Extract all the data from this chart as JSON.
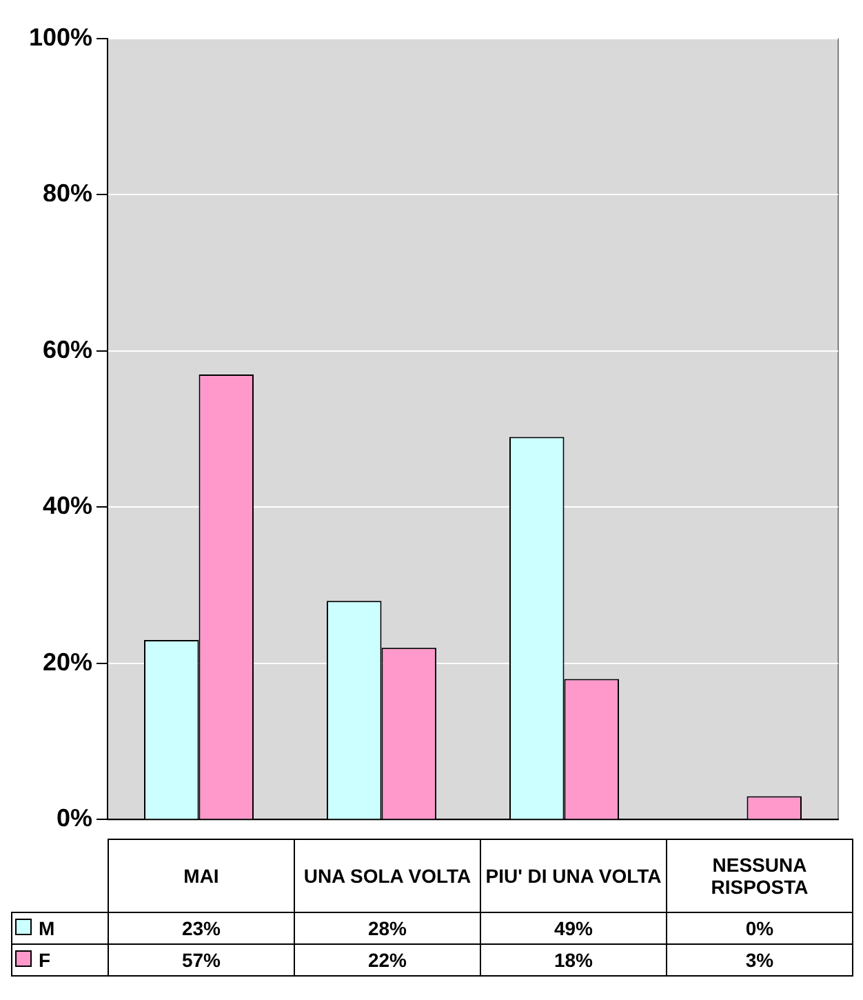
{
  "chart_data": {
    "type": "bar",
    "categories": [
      "MAI",
      "UNA SOLA VOLTA",
      "PIU' DI UNA VOLTA",
      "NESSUNA RISPOSTA"
    ],
    "series": [
      {
        "name": "M",
        "color": "#ccffff",
        "values": [
          23,
          28,
          49,
          0
        ],
        "value_labels": [
          "23%",
          "28%",
          "49%",
          "0%"
        ]
      },
      {
        "name": "F",
        "color": "#ff99cc",
        "values": [
          57,
          22,
          18,
          3
        ],
        "value_labels": [
          "57%",
          "22%",
          "18%",
          "3%"
        ]
      }
    ],
    "ylim": [
      0,
      100
    ],
    "yticks": [
      {
        "value": 0,
        "label": "0%"
      },
      {
        "value": 20,
        "label": "20%"
      },
      {
        "value": 40,
        "label": "40%"
      },
      {
        "value": 60,
        "label": "60%"
      },
      {
        "value": 80,
        "label": "80%"
      },
      {
        "value": 100,
        "label": "100%"
      }
    ],
    "grid": "y",
    "legend": "bottom"
  }
}
